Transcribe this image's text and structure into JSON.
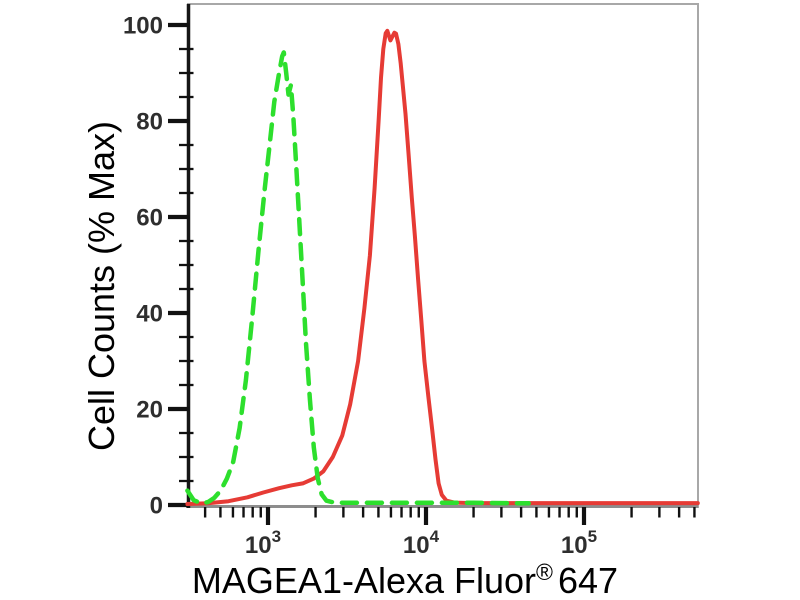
{
  "figure": {
    "background_color": "#ffffff",
    "frame_color": "#a8a8a8",
    "tick_color": "#111111",
    "y_axis": {
      "title": "Cell Counts (% Max)",
      "major": [
        {
          "value": 0,
          "label": "0"
        },
        {
          "value": 20,
          "label": "20"
        },
        {
          "value": 40,
          "label": "40"
        },
        {
          "value": 60,
          "label": "60"
        },
        {
          "value": 80,
          "label": "80"
        },
        {
          "value": 100,
          "label": "100"
        }
      ],
      "minor_values": [
        5,
        10,
        15,
        25,
        30,
        35,
        45,
        50,
        55,
        65,
        70,
        75,
        85,
        90,
        95
      ]
    },
    "x_axis": {
      "title_main": "MAGEA1-Alexa Fluor",
      "title_sup": "®",
      "title_suffix": "647",
      "major": [
        {
          "value": 1000,
          "base": "10",
          "exp": "3"
        },
        {
          "value": 10000,
          "base": "10",
          "exp": "4"
        },
        {
          "value": 100000,
          "base": "10",
          "exp": "5"
        }
      ],
      "minor_values": [
        400,
        500,
        600,
        700,
        800,
        900,
        2000,
        3000,
        4000,
        5000,
        6000,
        7000,
        8000,
        9000,
        20000,
        30000,
        40000,
        50000,
        60000,
        70000,
        80000,
        90000,
        200000,
        300000,
        400000,
        500000
      ]
    }
  },
  "chart_data": {
    "type": "line",
    "subtype": "flow-cytometry-histogram",
    "title": "",
    "xlabel": "MAGEA1-Alexa Fluor® 647",
    "ylabel": "Cell Counts (% Max)",
    "x_scale": "log10",
    "xlim": [
      310,
      530000
    ],
    "ylim": [
      0,
      100
    ],
    "x_major_ticks": [
      1000,
      10000,
      100000
    ],
    "y_major_ticks": [
      0,
      20,
      40,
      60,
      80,
      100
    ],
    "grid": false,
    "legend": "none",
    "series": [
      {
        "id": "red-solid",
        "name": "red solid curve",
        "color": "#e63b35",
        "line_style": "solid",
        "stroke_width": 4,
        "peak_x_approx": 6300,
        "peak_pct_approx": 99,
        "points_log10x_pct": [
          [
            2.49,
            0.2
          ],
          [
            2.62,
            0.35
          ],
          [
            2.75,
            0.8
          ],
          [
            2.87,
            1.6
          ],
          [
            2.97,
            2.6
          ],
          [
            3.07,
            3.5
          ],
          [
            3.15,
            4.1
          ],
          [
            3.22,
            4.5
          ],
          [
            3.29,
            5.5
          ],
          [
            3.35,
            7
          ],
          [
            3.41,
            10
          ],
          [
            3.47,
            14.5
          ],
          [
            3.52,
            21
          ],
          [
            3.57,
            30
          ],
          [
            3.61,
            41
          ],
          [
            3.645,
            52
          ],
          [
            3.675,
            66
          ],
          [
            3.7,
            80
          ],
          [
            3.715,
            89
          ],
          [
            3.73,
            95
          ],
          [
            3.745,
            98.3
          ],
          [
            3.755,
            98.8
          ],
          [
            3.775,
            96.8
          ],
          [
            3.8,
            98.4
          ],
          [
            3.81,
            98.2
          ],
          [
            3.825,
            96
          ],
          [
            3.84,
            92
          ],
          [
            3.85,
            88.5
          ],
          [
            3.87,
            81.5
          ],
          [
            3.89,
            73
          ],
          [
            3.91,
            64
          ],
          [
            3.93,
            56
          ],
          [
            3.95,
            47
          ],
          [
            3.97,
            38.5
          ],
          [
            3.99,
            30
          ],
          [
            4.015,
            22.5
          ],
          [
            4.04,
            15.5
          ],
          [
            4.06,
            9.5
          ],
          [
            4.08,
            4.5
          ],
          [
            4.1,
            2.1
          ],
          [
            4.13,
            0.9
          ],
          [
            4.18,
            0.5
          ],
          [
            4.3,
            0.4
          ],
          [
            4.5,
            0.4
          ],
          [
            4.75,
            0.4
          ],
          [
            5.0,
            0.4
          ],
          [
            5.3,
            0.4
          ],
          [
            5.55,
            0.4
          ],
          [
            5.72,
            0.4
          ]
        ]
      },
      {
        "id": "green-dashed",
        "name": "green dashed curve",
        "color": "#2ddf2d",
        "line_style": "dashed",
        "stroke_width": 4.5,
        "dash": "15 10",
        "peak_x_approx": 1250,
        "peak_pct_approx": 94,
        "points_log10x_pct": [
          [
            2.49,
            3
          ],
          [
            2.53,
            1
          ],
          [
            2.58,
            0.3
          ],
          [
            2.62,
            0.6
          ],
          [
            2.66,
            1.5
          ],
          [
            2.7,
            3
          ],
          [
            2.74,
            5.5
          ],
          [
            2.78,
            9
          ],
          [
            2.82,
            16
          ],
          [
            2.86,
            26
          ],
          [
            2.9,
            39
          ],
          [
            2.94,
            53
          ],
          [
            2.98,
            66
          ],
          [
            3.01,
            75
          ],
          [
            3.04,
            84
          ],
          [
            3.07,
            90
          ],
          [
            3.09,
            93.5
          ],
          [
            3.1,
            94.3
          ],
          [
            3.115,
            90
          ],
          [
            3.13,
            85.5
          ],
          [
            3.145,
            87.5
          ],
          [
            3.16,
            81
          ],
          [
            3.18,
            70
          ],
          [
            3.2,
            58
          ],
          [
            3.22,
            46
          ],
          [
            3.24,
            34
          ],
          [
            3.265,
            22
          ],
          [
            3.29,
            12
          ],
          [
            3.315,
            5.5
          ],
          [
            3.34,
            2.2
          ],
          [
            3.37,
            0.9
          ],
          [
            3.42,
            0.5
          ],
          [
            3.5,
            0.45
          ],
          [
            3.65,
            0.45
          ],
          [
            3.8,
            0.45
          ],
          [
            3.95,
            0.45
          ],
          [
            4.1,
            0.45
          ],
          [
            4.3,
            0.45
          ],
          [
            4.5,
            0.4
          ],
          [
            4.65,
            0.35
          ]
        ]
      }
    ]
  }
}
